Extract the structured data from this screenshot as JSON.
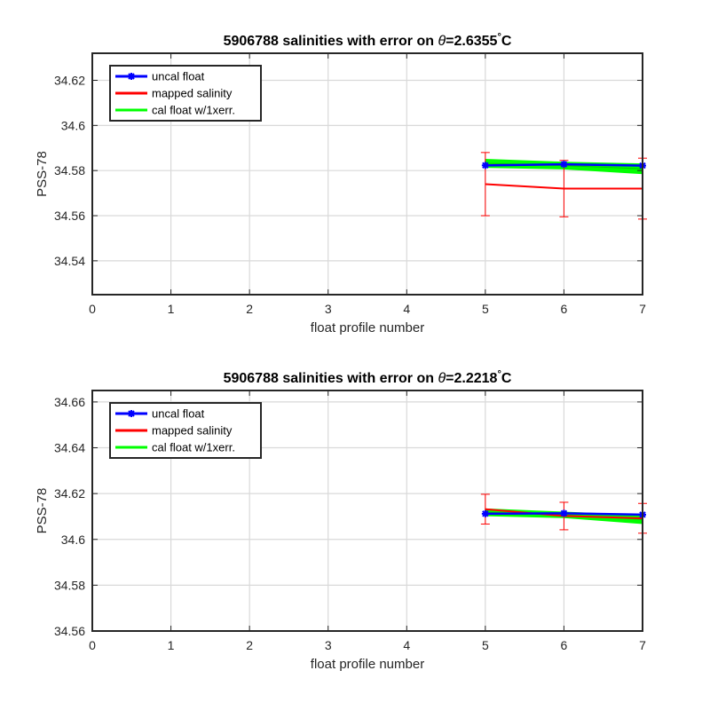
{
  "chart_data": [
    {
      "type": "line",
      "title_prefix": "5906788 salinities with error on ",
      "title_symbol": "θ",
      "title_value": "=2.6355",
      "title_degree": "°",
      "title_unit": "C",
      "xlabel": "float profile number",
      "ylabel": "PSS-78",
      "xlim": [
        0,
        7
      ],
      "ylim": [
        34.525,
        34.632
      ],
      "xticks": [
        0,
        1,
        2,
        3,
        4,
        5,
        6,
        7
      ],
      "xtick_labels": [
        "0",
        "1",
        "2",
        "3",
        "4",
        "5",
        "6",
        "7"
      ],
      "yticks": [
        34.54,
        34.56,
        34.58,
        34.6,
        34.62
      ],
      "ytick_labels": [
        "34.54",
        "34.56",
        "34.58",
        "34.6",
        "34.62"
      ],
      "grid": true,
      "legend_position": "top-left",
      "x": [
        5,
        6,
        7
      ],
      "series": [
        {
          "name": "uncal float",
          "color": "#0000ff",
          "values": [
            34.5823,
            34.5828,
            34.5822
          ],
          "marker": "asterisk"
        },
        {
          "name": "mapped salinity",
          "color": "#ff0000",
          "values": [
            34.574,
            34.572,
            34.572
          ],
          "error": [
            0.014,
            0.0125,
            0.0135
          ]
        },
        {
          "name": "cal float w/1xerr.",
          "color": "#00ff00",
          "values": [
            34.5832,
            34.5822,
            34.5808
          ],
          "band": [
            0.0018,
            0.0015,
            0.0022
          ]
        }
      ]
    },
    {
      "type": "line",
      "title_prefix": "5906788 salinities with error on ",
      "title_symbol": "θ",
      "title_value": "=2.2218",
      "title_degree": "°",
      "title_unit": "C",
      "xlabel": "float profile number",
      "ylabel": "PSS-78",
      "xlim": [
        0,
        7
      ],
      "ylim": [
        34.56,
        34.665
      ],
      "xticks": [
        0,
        1,
        2,
        3,
        4,
        5,
        6,
        7
      ],
      "xtick_labels": [
        "0",
        "1",
        "2",
        "3",
        "4",
        "5",
        "6",
        "7"
      ],
      "yticks": [
        34.56,
        34.58,
        34.6,
        34.62,
        34.64,
        34.66
      ],
      "ytick_labels": [
        "34.56",
        "34.58",
        "34.6",
        "34.62",
        "34.64",
        "34.66"
      ],
      "grid": true,
      "legend_position": "top-left",
      "x": [
        5,
        6,
        7
      ],
      "series": [
        {
          "name": "uncal float",
          "color": "#0000ff",
          "values": [
            34.6112,
            34.6114,
            34.6108
          ],
          "marker": "asterisk"
        },
        {
          "name": "mapped salinity",
          "color": "#ff0000",
          "values": [
            34.6132,
            34.6102,
            34.6092
          ],
          "error": [
            0.0065,
            0.006,
            0.0065
          ]
        },
        {
          "name": "cal float w/1xerr.",
          "color": "#00ff00",
          "values": [
            34.6118,
            34.6107,
            34.6087
          ],
          "band": [
            0.0015,
            0.0012,
            0.0018
          ]
        }
      ]
    }
  ]
}
